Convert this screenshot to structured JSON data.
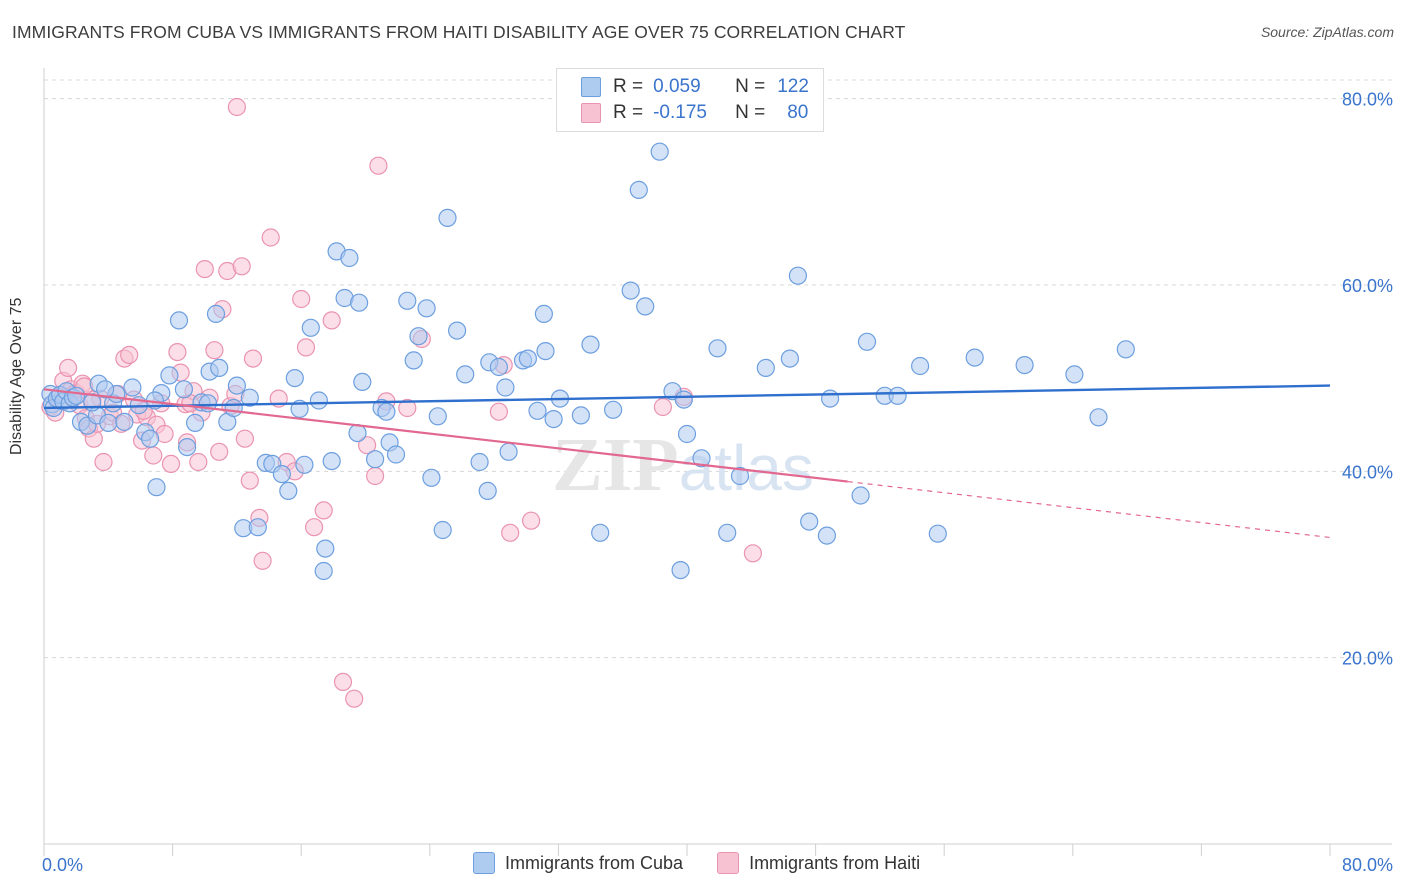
{
  "title": "IMMIGRANTS FROM CUBA VS IMMIGRANTS FROM HAITI DISABILITY AGE OVER 75 CORRELATION CHART",
  "source": "Source: ZipAtlas.com",
  "watermark": "ZIPatlas",
  "colors": {
    "cuba_fill": "#aecbf0",
    "cuba_stroke": "#6d9fdf",
    "cuba_line": "#2f6fcd",
    "haiti_fill": "#f7c3d3",
    "haiti_stroke": "#ea93b0",
    "haiti_line": "#e2688f",
    "axis_text": "#3a74cc",
    "grid": "#d8d8d8"
  },
  "stats": {
    "cuba": {
      "r_label": "R =",
      "r": "0.059",
      "n_label": "N =",
      "n": "122"
    },
    "haiti": {
      "r_label": "R =",
      "r": "-0.175",
      "n_label": "N =",
      "n": "80"
    }
  },
  "legend": {
    "cuba": "Immigrants from Cuba",
    "haiti": "Immigrants from Haiti"
  },
  "chart_data": {
    "type": "scatter",
    "title": "IMMIGRANTS FROM CUBA VS IMMIGRANTS FROM HAITI DISABILITY AGE OVER 75 CORRELATION CHART",
    "xlabel": "",
    "ylabel": "Disability Age Over 75",
    "xlim": [
      0,
      80
    ],
    "ylim": [
      0,
      82
    ],
    "x_tick_labels": [
      "0.0%",
      "80.0%"
    ],
    "y_ticks": [
      20,
      40,
      60,
      80
    ],
    "y_tick_labels": [
      "20.0%",
      "40.0%",
      "60.0%",
      "80.0%"
    ],
    "grid": "horizontal dashed",
    "legend_position": "bottom-center",
    "series": [
      {
        "name": "Immigrants from Cuba",
        "trend": {
          "x": [
            0,
            80
          ],
          "y": [
            46.8,
            49.2
          ]
        },
        "points": [
          [
            0.4,
            48.3
          ],
          [
            0.5,
            47.2
          ],
          [
            0.6,
            46.8
          ],
          [
            0.8,
            47.8
          ],
          [
            1.0,
            48.2
          ],
          [
            1.2,
            47.5
          ],
          [
            1.4,
            48.6
          ],
          [
            1.6,
            47.3
          ],
          [
            1.8,
            47.9
          ],
          [
            2.0,
            48.1
          ],
          [
            2.3,
            45.3
          ],
          [
            2.7,
            44.9
          ],
          [
            3.3,
            46.0
          ],
          [
            3.0,
            47.4
          ],
          [
            3.4,
            49.4
          ],
          [
            4.0,
            45.2
          ],
          [
            4.3,
            47.3
          ],
          [
            4.5,
            48.3
          ],
          [
            5.0,
            45.3
          ],
          [
            5.5,
            49.0
          ],
          [
            5.9,
            47.1
          ],
          [
            6.3,
            44.2
          ],
          [
            6.6,
            43.5
          ],
          [
            7.0,
            38.3
          ],
          [
            7.3,
            48.4
          ],
          [
            7.8,
            50.3
          ],
          [
            8.4,
            56.2
          ],
          [
            8.7,
            48.8
          ],
          [
            8.9,
            42.6
          ],
          [
            9.4,
            45.2
          ],
          [
            9.8,
            47.4
          ],
          [
            10.3,
            50.7
          ],
          [
            10.7,
            56.9
          ],
          [
            10.9,
            51.1
          ],
          [
            11.4,
            45.3
          ],
          [
            11.8,
            46.8
          ],
          [
            12.0,
            49.2
          ],
          [
            12.4,
            33.9
          ],
          [
            12.8,
            47.9
          ],
          [
            13.3,
            34.0
          ],
          [
            13.8,
            40.9
          ],
          [
            14.2,
            40.8
          ],
          [
            14.8,
            39.7
          ],
          [
            15.2,
            37.9
          ],
          [
            15.6,
            50.0
          ],
          [
            15.9,
            46.7
          ],
          [
            16.2,
            40.7
          ],
          [
            16.6,
            55.4
          ],
          [
            17.1,
            47.6
          ],
          [
            17.5,
            31.7
          ],
          [
            17.4,
            29.3
          ],
          [
            17.9,
            41.1
          ],
          [
            18.2,
            63.6
          ],
          [
            18.7,
            58.6
          ],
          [
            19.0,
            62.9
          ],
          [
            19.6,
            58.1
          ],
          [
            19.8,
            49.6
          ],
          [
            19.5,
            44.1
          ],
          [
            20.6,
            41.3
          ],
          [
            21.0,
            46.8
          ],
          [
            21.5,
            43.1
          ],
          [
            21.3,
            46.4
          ],
          [
            21.9,
            41.8
          ],
          [
            22.6,
            58.3
          ],
          [
            23.0,
            51.9
          ],
          [
            23.3,
            54.5
          ],
          [
            23.8,
            57.5
          ],
          [
            24.1,
            39.3
          ],
          [
            24.5,
            45.9
          ],
          [
            25.1,
            67.2
          ],
          [
            24.8,
            33.7
          ],
          [
            25.7,
            55.1
          ],
          [
            26.2,
            50.4
          ],
          [
            27.1,
            41.0
          ],
          [
            27.6,
            37.9
          ],
          [
            27.7,
            51.7
          ],
          [
            28.7,
            49.0
          ],
          [
            28.3,
            51.2
          ],
          [
            28.9,
            42.1
          ],
          [
            29.8,
            51.9
          ],
          [
            30.1,
            52.1
          ],
          [
            30.7,
            46.5
          ],
          [
            31.2,
            52.9
          ],
          [
            31.1,
            56.9
          ],
          [
            31.7,
            45.6
          ],
          [
            32.1,
            47.8
          ],
          [
            33.4,
            46.0
          ],
          [
            34.0,
            53.6
          ],
          [
            34.6,
            33.4
          ],
          [
            35.4,
            46.6
          ],
          [
            36.5,
            59.4
          ],
          [
            37.0,
            70.2
          ],
          [
            37.4,
            57.7
          ],
          [
            38.3,
            74.3
          ],
          [
            39.1,
            48.6
          ],
          [
            39.6,
            29.4
          ],
          [
            39.8,
            47.7
          ],
          [
            40.0,
            44.0
          ],
          [
            40.9,
            41.4
          ],
          [
            41.9,
            53.2
          ],
          [
            42.5,
            33.4
          ],
          [
            43.3,
            39.5
          ],
          [
            44.9,
            51.1
          ],
          [
            46.4,
            52.1
          ],
          [
            46.9,
            61.0
          ],
          [
            47.6,
            34.6
          ],
          [
            48.7,
            33.1
          ],
          [
            48.9,
            47.8
          ],
          [
            50.8,
            37.4
          ],
          [
            51.2,
            53.9
          ],
          [
            52.3,
            48.1
          ],
          [
            53.1,
            48.1
          ],
          [
            54.5,
            51.3
          ],
          [
            55.6,
            33.3
          ],
          [
            57.9,
            52.2
          ],
          [
            61.0,
            51.4
          ],
          [
            64.1,
            50.4
          ],
          [
            65.6,
            45.8
          ],
          [
            67.3,
            53.1
          ],
          [
            10.2,
            47.3
          ],
          [
            3.8,
            48.8
          ],
          [
            6.9,
            47.6
          ]
        ]
      },
      {
        "name": "Immigrants from Haiti",
        "trend": {
          "x": [
            0,
            50
          ],
          "y": [
            48.8,
            38.9
          ]
        },
        "trend_extension": {
          "x": [
            50,
            80
          ],
          "y": [
            38.9,
            32.9
          ]
        },
        "points": [
          [
            0.4,
            46.9
          ],
          [
            0.7,
            46.3
          ],
          [
            1.0,
            47.6
          ],
          [
            1.2,
            49.7
          ],
          [
            1.5,
            51.1
          ],
          [
            1.7,
            48.8
          ],
          [
            2.0,
            48.4
          ],
          [
            2.2,
            47.1
          ],
          [
            2.4,
            49.4
          ],
          [
            2.6,
            45.7
          ],
          [
            2.8,
            44.6
          ],
          [
            3.1,
            43.5
          ],
          [
            3.3,
            45.1
          ],
          [
            3.5,
            47.8
          ],
          [
            3.7,
            41.0
          ],
          [
            4.1,
            45.9
          ],
          [
            4.3,
            46.3
          ],
          [
            4.6,
            48.3
          ],
          [
            5.0,
            52.1
          ],
          [
            5.3,
            52.5
          ],
          [
            5.6,
            47.7
          ],
          [
            5.8,
            46.1
          ],
          [
            6.1,
            43.3
          ],
          [
            6.4,
            45.8
          ],
          [
            6.8,
            41.7
          ],
          [
            7.0,
            45.0
          ],
          [
            7.3,
            47.3
          ],
          [
            7.5,
            44.0
          ],
          [
            7.9,
            40.8
          ],
          [
            8.3,
            52.8
          ],
          [
            8.5,
            50.6
          ],
          [
            8.8,
            47.2
          ],
          [
            8.9,
            43.1
          ],
          [
            9.3,
            48.6
          ],
          [
            9.6,
            41.0
          ],
          [
            9.8,
            46.3
          ],
          [
            10.0,
            61.7
          ],
          [
            10.3,
            47.9
          ],
          [
            10.6,
            53.0
          ],
          [
            10.9,
            42.1
          ],
          [
            11.1,
            57.4
          ],
          [
            11.4,
            61.5
          ],
          [
            11.6,
            47.0
          ],
          [
            11.9,
            48.3
          ],
          [
            12.3,
            62.0
          ],
          [
            12.5,
            43.5
          ],
          [
            12.8,
            39.0
          ],
          [
            13.0,
            52.1
          ],
          [
            13.4,
            35.0
          ],
          [
            13.6,
            30.4
          ],
          [
            14.1,
            65.1
          ],
          [
            14.6,
            47.8
          ],
          [
            15.1,
            41.0
          ],
          [
            15.6,
            40.0
          ],
          [
            16.0,
            58.5
          ],
          [
            16.3,
            53.3
          ],
          [
            16.8,
            34.0
          ],
          [
            17.4,
            35.8
          ],
          [
            17.9,
            56.2
          ],
          [
            18.6,
            17.4
          ],
          [
            19.3,
            15.6
          ],
          [
            20.1,
            42.8
          ],
          [
            20.8,
            72.8
          ],
          [
            20.6,
            39.5
          ],
          [
            21.3,
            47.5
          ],
          [
            22.6,
            46.8
          ],
          [
            23.5,
            54.2
          ],
          [
            28.3,
            46.4
          ],
          [
            28.6,
            51.4
          ],
          [
            29.0,
            33.4
          ],
          [
            30.3,
            34.7
          ],
          [
            38.5,
            46.9
          ],
          [
            39.8,
            48.0
          ],
          [
            44.1,
            31.2
          ],
          [
            12.0,
            79.1
          ],
          [
            6.2,
            46.5
          ],
          [
            4.8,
            45.1
          ],
          [
            9.1,
            47.3
          ],
          [
            3.0,
            47.7
          ],
          [
            2.5,
            49.1
          ]
        ]
      }
    ]
  }
}
